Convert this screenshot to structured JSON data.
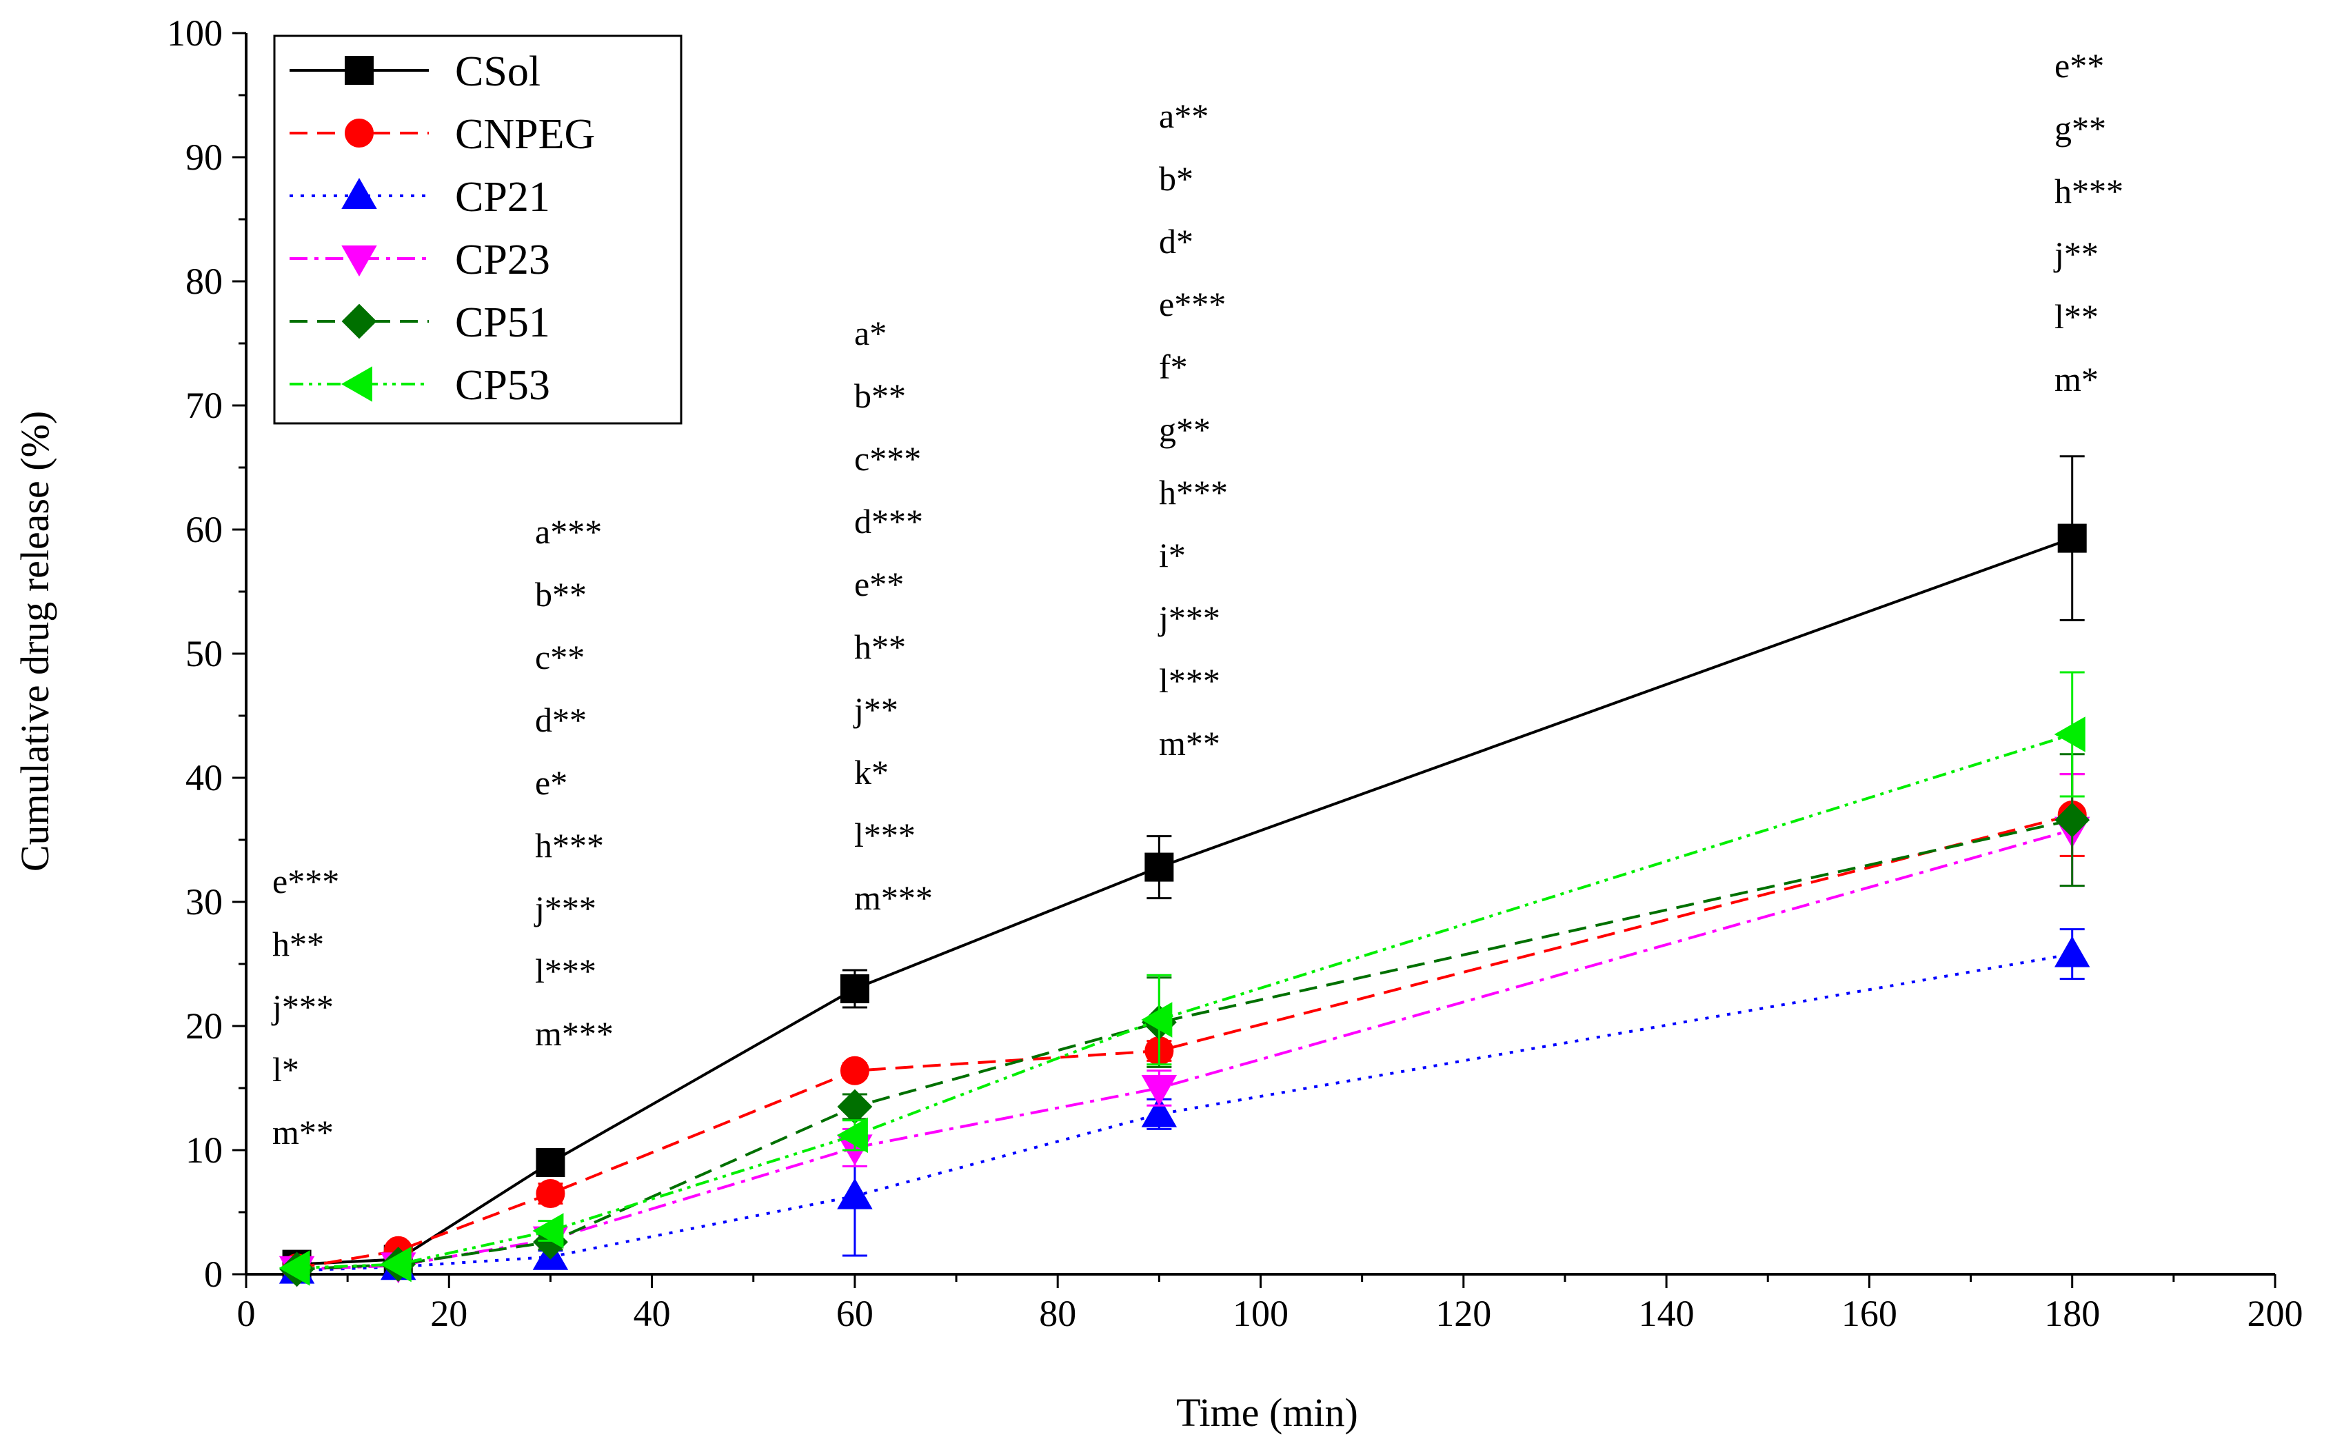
{
  "chart_data": {
    "type": "line",
    "xlabel": "Time (min)",
    "ylabel": "Cumulative drug release (%)",
    "xlim": [
      0,
      200
    ],
    "ylim": [
      0,
      100
    ],
    "xticks": [
      0,
      20,
      40,
      60,
      80,
      100,
      120,
      140,
      160,
      180,
      200
    ],
    "yticks": [
      0,
      10,
      20,
      30,
      40,
      50,
      60,
      70,
      80,
      90,
      100
    ],
    "grid": false,
    "legend_position": "top-left",
    "x": [
      5,
      15,
      30,
      60,
      90,
      180
    ],
    "series": [
      {
        "name": "CSol",
        "color": "#000000",
        "dash": "solid",
        "marker": "square",
        "values": [
          0.8,
          1.2,
          9.0,
          23.0,
          32.8,
          59.3
        ],
        "errors": [
          0.3,
          0.3,
          0.9,
          1.5,
          2.5,
          6.6
        ]
      },
      {
        "name": "CNPEG",
        "color": "#ff0000",
        "dash": "dashed",
        "marker": "circle",
        "values": [
          0.5,
          1.9,
          6.5,
          16.4,
          18.0,
          37.0
        ],
        "errors": [
          0.2,
          0.3,
          0.8,
          0.6,
          0.8,
          3.3
        ]
      },
      {
        "name": "CP21",
        "color": "#0000ff",
        "dash": "dotted",
        "marker": "triangle-up",
        "values": [
          0.3,
          0.6,
          1.4,
          6.3,
          12.9,
          25.8
        ],
        "errors": [
          0.2,
          0.2,
          0.5,
          4.8,
          1.2,
          2.0
        ]
      },
      {
        "name": "CP23",
        "color": "#ff00ff",
        "dash": "dash-dot",
        "marker": "triangle-down",
        "values": [
          0.4,
          0.7,
          2.8,
          10.2,
          15.0,
          35.8
        ],
        "errors": [
          0.2,
          0.2,
          0.6,
          1.5,
          1.4,
          4.5
        ]
      },
      {
        "name": "CP51",
        "color": "#007000",
        "dash": "dashed",
        "marker": "diamond",
        "values": [
          0.4,
          0.8,
          2.6,
          13.5,
          20.3,
          36.6
        ],
        "errors": [
          0.2,
          0.2,
          0.6,
          1.0,
          3.6,
          5.3
        ]
      },
      {
        "name": "CP53",
        "color": "#00ee00",
        "dash": "dash-dot-dot",
        "marker": "triangle-left",
        "values": [
          0.5,
          0.8,
          3.5,
          11.2,
          20.5,
          43.5
        ],
        "errors": [
          0.2,
          0.2,
          0.8,
          1.2,
          3.6,
          5.0
        ]
      }
    ],
    "annotations": [
      {
        "x": 5,
        "labels": [
          "e***",
          "h**",
          "j***",
          "l*",
          "m**"
        ]
      },
      {
        "x": 30,
        "labels": [
          "a***",
          "b**",
          "c**",
          "d**",
          "e*",
          "h***",
          "j***",
          "l***",
          "m***"
        ]
      },
      {
        "x": 60,
        "labels": [
          "a*",
          "b**",
          "c***",
          "d***",
          "e**",
          "h**",
          "j**",
          "k*",
          "l***",
          "m***"
        ]
      },
      {
        "x": 90,
        "labels": [
          "a**",
          "b*",
          "d*",
          "e***",
          "f*",
          "g**",
          "h***",
          "i*",
          "j***",
          "l***",
          "m**"
        ]
      },
      {
        "x": 180,
        "labels": [
          "e**",
          "g**",
          "h***",
          "j**",
          "l**",
          "m*"
        ]
      }
    ]
  }
}
